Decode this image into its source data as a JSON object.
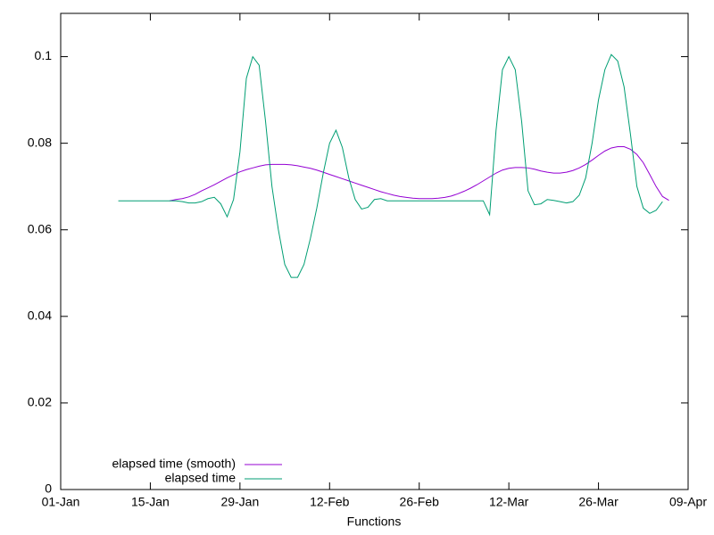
{
  "chart_data": {
    "type": "line",
    "xlabel": "Functions",
    "x": [
      "01-10",
      "01-11",
      "01-12",
      "01-13",
      "01-14",
      "01-15",
      "01-16",
      "01-17",
      "01-18",
      "01-19",
      "01-20",
      "01-21",
      "01-22",
      "01-23",
      "01-24",
      "01-25",
      "01-26",
      "01-27",
      "01-28",
      "01-29",
      "01-30",
      "01-31",
      "02-01",
      "02-02",
      "02-03",
      "02-04",
      "02-05",
      "02-06",
      "02-07",
      "02-08",
      "02-09",
      "02-10",
      "02-11",
      "02-12",
      "02-13",
      "02-14",
      "02-15",
      "02-16",
      "02-17",
      "02-18",
      "02-19",
      "02-20",
      "02-21",
      "02-22",
      "02-23",
      "02-24",
      "02-25",
      "02-26",
      "02-27",
      "02-28",
      "03-01",
      "03-02",
      "03-03",
      "03-04",
      "03-05",
      "03-06",
      "03-07",
      "03-08",
      "03-09",
      "03-10",
      "03-11",
      "03-12",
      "03-13",
      "03-14",
      "03-15",
      "03-16",
      "03-17",
      "03-18",
      "03-19",
      "03-20",
      "03-21",
      "03-22",
      "03-23",
      "03-24",
      "03-25",
      "03-26",
      "03-27",
      "03-28",
      "03-29",
      "03-30",
      "03-31",
      "04-01",
      "04-02",
      "04-03",
      "04-04",
      "04-05",
      "04-06"
    ],
    "series": [
      {
        "name": "elapsed time (smooth)",
        "color": "#9400d3",
        "values": [
          null,
          null,
          null,
          null,
          null,
          null,
          null,
          null,
          0.0667,
          0.067,
          0.0672,
          0.0676,
          0.0682,
          0.069,
          0.0697,
          0.0704,
          0.0712,
          0.072,
          0.0727,
          0.0734,
          0.0739,
          0.0743,
          0.0747,
          0.075,
          0.0751,
          0.0751,
          0.0751,
          0.075,
          0.0748,
          0.0745,
          0.0742,
          0.0738,
          0.0733,
          0.0728,
          0.0723,
          0.0718,
          0.0713,
          0.0708,
          0.0703,
          0.0698,
          0.0693,
          0.0688,
          0.0684,
          0.068,
          0.0677,
          0.0675,
          0.0673,
          0.0672,
          0.0672,
          0.0672,
          0.0673,
          0.0675,
          0.0678,
          0.0683,
          0.0689,
          0.0696,
          0.0704,
          0.0713,
          0.0722,
          0.0731,
          0.0738,
          0.0742,
          0.0744,
          0.0744,
          0.0743,
          0.074,
          0.0736,
          0.0733,
          0.0731,
          0.0731,
          0.0733,
          0.0737,
          0.0743,
          0.0751,
          0.0761,
          0.0772,
          0.0782,
          0.0789,
          0.0792,
          0.0792,
          0.0786,
          0.0774,
          0.0755,
          0.0728,
          0.07,
          0.0677,
          0.0668
        ]
      },
      {
        "name": "elapsed time",
        "color": "#009e73",
        "values": [
          0.0667,
          0.0667,
          0.0667,
          0.0667,
          0.0667,
          0.0667,
          0.0667,
          0.0667,
          0.0667,
          0.0667,
          0.0665,
          0.0662,
          0.0662,
          0.0665,
          0.0672,
          0.0675,
          0.066,
          0.063,
          0.067,
          0.078,
          0.095,
          0.1,
          0.098,
          0.085,
          0.07,
          0.06,
          0.052,
          0.049,
          0.049,
          0.052,
          0.058,
          0.065,
          0.073,
          0.08,
          0.083,
          0.079,
          0.072,
          0.067,
          0.0648,
          0.0652,
          0.067,
          0.0672,
          0.0667,
          0.0667,
          0.0667,
          0.0667,
          0.0667,
          0.0667,
          0.0667,
          0.0667,
          0.0667,
          0.0667,
          0.0667,
          0.0667,
          0.0667,
          0.0667,
          0.0667,
          0.0667,
          0.0635,
          0.083,
          0.097,
          0.1,
          0.097,
          0.085,
          0.069,
          0.0658,
          0.066,
          0.067,
          0.0668,
          0.0665,
          0.0662,
          0.0665,
          0.068,
          0.072,
          0.08,
          0.09,
          0.097,
          0.1005,
          0.099,
          0.093,
          0.082,
          0.07,
          0.065,
          0.0638,
          0.0645,
          0.0665,
          null
        ]
      }
    ],
    "xlim": [
      "01-01",
      "04-09"
    ],
    "xticks": [
      {
        "value": "01-01",
        "label": "01-Jan"
      },
      {
        "value": "01-15",
        "label": "15-Jan"
      },
      {
        "value": "01-29",
        "label": "29-Jan"
      },
      {
        "value": "02-12",
        "label": "12-Feb"
      },
      {
        "value": "02-26",
        "label": "26-Feb"
      },
      {
        "value": "03-12",
        "label": "12-Mar"
      },
      {
        "value": "03-26",
        "label": "26-Mar"
      },
      {
        "value": "04-09",
        "label": "09-Apr"
      }
    ],
    "ylim": [
      0,
      0.11
    ],
    "yticks": [
      0,
      0.02,
      0.04,
      0.06,
      0.08,
      0.1
    ],
    "legend": "bottom-left"
  }
}
